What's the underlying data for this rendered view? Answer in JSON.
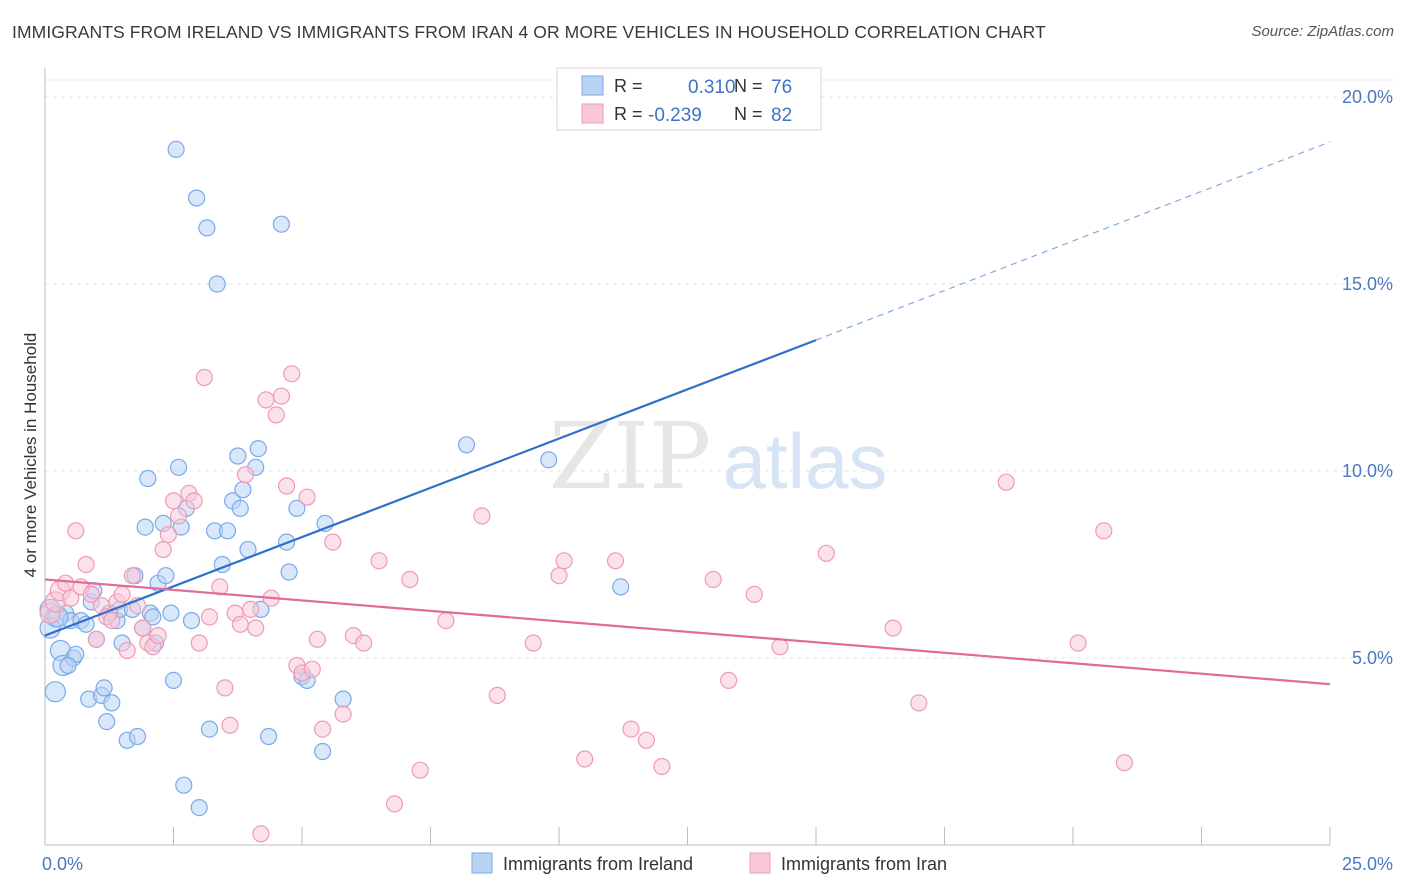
{
  "title": "IMMIGRANTS FROM IRELAND VS IMMIGRANTS FROM IRAN 4 OR MORE VEHICLES IN HOUSEHOLD CORRELATION CHART",
  "source": "Source: ZipAtlas.com",
  "watermark": {
    "zip": "ZIP",
    "atlas": "atlas"
  },
  "chart_data": {
    "type": "scatter",
    "title": "IMMIGRANTS FROM IRELAND VS IMMIGRANTS FROM IRAN 4 OR MORE VEHICLES IN HOUSEHOLD CORRELATION CHART",
    "xlabel": "",
    "ylabel": "4 or more Vehicles in Household",
    "xlim": [
      0,
      25
    ],
    "ylim": [
      0,
      20
    ],
    "x_tick_labels": [
      "0.0%",
      "25.0%"
    ],
    "y_ticks": [
      5,
      10,
      15,
      20
    ],
    "y_tick_labels": [
      "5.0%",
      "10.0%",
      "15.0%",
      "20.0%"
    ],
    "legend_position": "top-center",
    "series": [
      {
        "name": "Immigrants from Ireland",
        "color": "#7aaae8",
        "fill": "#b9d3f5",
        "line_color": "#2e6fce",
        "R": "0.310",
        "N": "76",
        "trend": {
          "x1": 0.0,
          "y1": 5.6,
          "x2": 15.0,
          "y2": 13.5,
          "dash_to_x": 25.0,
          "dash_to_y": 18.8
        },
        "points": [
          [
            0.1,
            6.3
          ],
          [
            0.2,
            6.1
          ],
          [
            0.1,
            5.8
          ],
          [
            0.2,
            4.1
          ],
          [
            0.3,
            5.2
          ],
          [
            0.35,
            4.8
          ],
          [
            0.4,
            6.2
          ],
          [
            0.5,
            6.0
          ],
          [
            0.55,
            5.0
          ],
          [
            0.6,
            5.1
          ],
          [
            0.7,
            6.0
          ],
          [
            0.8,
            5.9
          ],
          [
            0.85,
            3.9
          ],
          [
            0.9,
            6.5
          ],
          [
            0.95,
            6.8
          ],
          [
            1.0,
            5.5
          ],
          [
            1.1,
            4.0
          ],
          [
            1.15,
            4.2
          ],
          [
            1.2,
            3.3
          ],
          [
            1.3,
            3.8
          ],
          [
            1.4,
            6.0
          ],
          [
            1.45,
            6.3
          ],
          [
            1.5,
            5.4
          ],
          [
            1.6,
            2.8
          ],
          [
            1.7,
            6.3
          ],
          [
            1.75,
            7.2
          ],
          [
            1.8,
            2.9
          ],
          [
            1.9,
            5.8
          ],
          [
            1.95,
            8.5
          ],
          [
            2.0,
            9.8
          ],
          [
            2.05,
            6.2
          ],
          [
            2.15,
            5.4
          ],
          [
            2.2,
            7.0
          ],
          [
            2.3,
            8.6
          ],
          [
            2.35,
            7.2
          ],
          [
            2.45,
            6.2
          ],
          [
            2.5,
            4.4
          ],
          [
            2.55,
            18.6
          ],
          [
            2.6,
            10.1
          ],
          [
            2.65,
            8.5
          ],
          [
            2.7,
            1.6
          ],
          [
            2.75,
            9.0
          ],
          [
            2.85,
            6.0
          ],
          [
            2.95,
            17.3
          ],
          [
            3.0,
            1.0
          ],
          [
            3.15,
            16.5
          ],
          [
            3.2,
            3.1
          ],
          [
            3.3,
            8.4
          ],
          [
            3.35,
            15.0
          ],
          [
            3.45,
            7.5
          ],
          [
            3.55,
            8.4
          ],
          [
            3.65,
            9.2
          ],
          [
            3.75,
            10.4
          ],
          [
            3.8,
            9.0
          ],
          [
            3.85,
            9.5
          ],
          [
            3.95,
            7.9
          ],
          [
            4.1,
            10.1
          ],
          [
            4.15,
            10.6
          ],
          [
            4.2,
            6.3
          ],
          [
            4.35,
            2.9
          ],
          [
            4.6,
            16.6
          ],
          [
            4.7,
            8.1
          ],
          [
            4.75,
            7.3
          ],
          [
            4.9,
            9.0
          ],
          [
            5.0,
            4.5
          ],
          [
            5.1,
            4.4
          ],
          [
            5.4,
            2.5
          ],
          [
            5.45,
            8.6
          ],
          [
            5.8,
            3.9
          ],
          [
            8.2,
            10.7
          ],
          [
            9.8,
            10.3
          ],
          [
            11.2,
            6.9
          ],
          [
            0.25,
            6.1
          ],
          [
            0.45,
            4.8
          ],
          [
            1.25,
            6.2
          ],
          [
            2.1,
            6.1
          ]
        ]
      },
      {
        "name": "Immigrants from Iran",
        "color": "#ef9ab6",
        "fill": "#f8c8d8",
        "line_color": "#e06a98",
        "R": "-0.239",
        "N": "82",
        "trend": {
          "x1": 0.0,
          "y1": 7.1,
          "x2": 25.0,
          "y2": 4.3
        },
        "points": [
          [
            0.1,
            6.2
          ],
          [
            0.2,
            6.5
          ],
          [
            0.3,
            6.8
          ],
          [
            0.4,
            7.0
          ],
          [
            0.5,
            6.6
          ],
          [
            0.6,
            8.4
          ],
          [
            0.7,
            6.9
          ],
          [
            0.8,
            7.5
          ],
          [
            0.9,
            6.7
          ],
          [
            1.0,
            5.5
          ],
          [
            1.1,
            6.4
          ],
          [
            1.2,
            6.1
          ],
          [
            1.3,
            6.0
          ],
          [
            1.4,
            6.5
          ],
          [
            1.5,
            6.7
          ],
          [
            1.6,
            5.2
          ],
          [
            1.7,
            7.2
          ],
          [
            1.8,
            6.4
          ],
          [
            1.9,
            5.8
          ],
          [
            2.0,
            5.4
          ],
          [
            2.1,
            5.3
          ],
          [
            2.2,
            5.6
          ],
          [
            2.3,
            7.9
          ],
          [
            2.4,
            8.3
          ],
          [
            2.5,
            9.2
          ],
          [
            2.6,
            8.8
          ],
          [
            2.8,
            9.4
          ],
          [
            2.9,
            9.2
          ],
          [
            3.0,
            5.4
          ],
          [
            3.1,
            12.5
          ],
          [
            3.2,
            6.1
          ],
          [
            3.4,
            6.9
          ],
          [
            3.5,
            4.2
          ],
          [
            3.6,
            3.2
          ],
          [
            3.7,
            6.2
          ],
          [
            3.8,
            5.9
          ],
          [
            3.9,
            9.9
          ],
          [
            4.0,
            6.3
          ],
          [
            4.1,
            5.8
          ],
          [
            4.2,
            0.3
          ],
          [
            4.3,
            11.9
          ],
          [
            4.4,
            6.6
          ],
          [
            4.5,
            11.5
          ],
          [
            4.6,
            12.0
          ],
          [
            4.7,
            9.6
          ],
          [
            4.8,
            12.6
          ],
          [
            4.9,
            4.8
          ],
          [
            5.0,
            4.6
          ],
          [
            5.1,
            9.3
          ],
          [
            5.2,
            4.7
          ],
          [
            5.3,
            5.5
          ],
          [
            5.4,
            3.1
          ],
          [
            5.6,
            8.1
          ],
          [
            5.8,
            3.5
          ],
          [
            6.0,
            5.6
          ],
          [
            6.2,
            5.4
          ],
          [
            6.5,
            7.6
          ],
          [
            6.8,
            1.1
          ],
          [
            7.1,
            7.1
          ],
          [
            7.3,
            2.0
          ],
          [
            7.8,
            6.0
          ],
          [
            8.5,
            8.8
          ],
          [
            8.8,
            4.0
          ],
          [
            9.5,
            5.4
          ],
          [
            10.0,
            7.2
          ],
          [
            10.1,
            7.6
          ],
          [
            10.5,
            2.3
          ],
          [
            11.1,
            7.6
          ],
          [
            11.4,
            3.1
          ],
          [
            11.7,
            2.8
          ],
          [
            12.0,
            2.1
          ],
          [
            13.0,
            7.1
          ],
          [
            13.3,
            4.4
          ],
          [
            13.8,
            6.7
          ],
          [
            14.3,
            5.3
          ],
          [
            15.2,
            7.8
          ],
          [
            16.5,
            5.8
          ],
          [
            17.0,
            3.8
          ],
          [
            18.7,
            9.7
          ],
          [
            20.1,
            5.4
          ],
          [
            20.6,
            8.4
          ],
          [
            21.0,
            2.2
          ]
        ]
      }
    ]
  },
  "legend": {
    "r_label": "R =",
    "n_label": "N ="
  }
}
